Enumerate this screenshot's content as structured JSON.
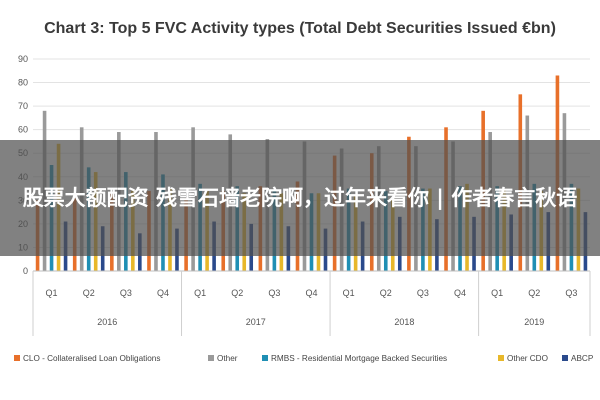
{
  "chart_data": {
    "type": "bar",
    "title": "Chart 3: Top 5 FVC Activity types (Total Debt Securities Issued €bn)",
    "xlabel": "",
    "ylabel": "",
    "ylim": [
      0,
      90
    ],
    "yticks": [
      0,
      10,
      20,
      30,
      40,
      50,
      60,
      70,
      80,
      90
    ],
    "grid": true,
    "legend": "bottom",
    "categories": [
      "Q1",
      "Q2",
      "Q3",
      "Q4",
      "Q1",
      "Q2",
      "Q3",
      "Q4",
      "Q1",
      "Q2",
      "Q3",
      "Q4",
      "Q1",
      "Q2",
      "Q3"
    ],
    "groups": [
      {
        "label": "2016",
        "count": 4
      },
      {
        "label": "2017",
        "count": 4
      },
      {
        "label": "2018",
        "count": 4
      },
      {
        "label": "2019",
        "count": 3
      }
    ],
    "series": [
      {
        "name": "CLO - Collateralised Loan Obligations",
        "color": "#e8702a",
        "values": [
          30,
          31,
          33,
          34,
          31,
          34,
          36,
          38,
          49,
          50,
          57,
          61,
          68,
          75,
          83
        ]
      },
      {
        "name": "Other",
        "color": "#9a9a9a",
        "values": [
          68,
          61,
          59,
          59,
          61,
          58,
          56,
          55,
          52,
          53,
          53,
          55,
          59,
          66,
          67
        ]
      },
      {
        "name": "RMBS - Residential Mortgage Backed Securities",
        "color": "#1f8fb4",
        "values": [
          45,
          44,
          42,
          41,
          37,
          36,
          34,
          33,
          35,
          34,
          35,
          36,
          36,
          37,
          37
        ]
      },
      {
        "name": "Other CDO",
        "color": "#e8b82a",
        "values": [
          54,
          42,
          34,
          35,
          34,
          33,
          33,
          33,
          32,
          31,
          35,
          37,
          35,
          34,
          35
        ]
      },
      {
        "name": "ABCP",
        "color": "#2a4a8c",
        "values": [
          21,
          19,
          16,
          18,
          21,
          20,
          19,
          18,
          21,
          23,
          22,
          23,
          24,
          25,
          25
        ]
      }
    ]
  },
  "overlay": {
    "text": "股票大额配资 残雪石墙老院啊，过年来看你 | 作者春言秋语"
  }
}
